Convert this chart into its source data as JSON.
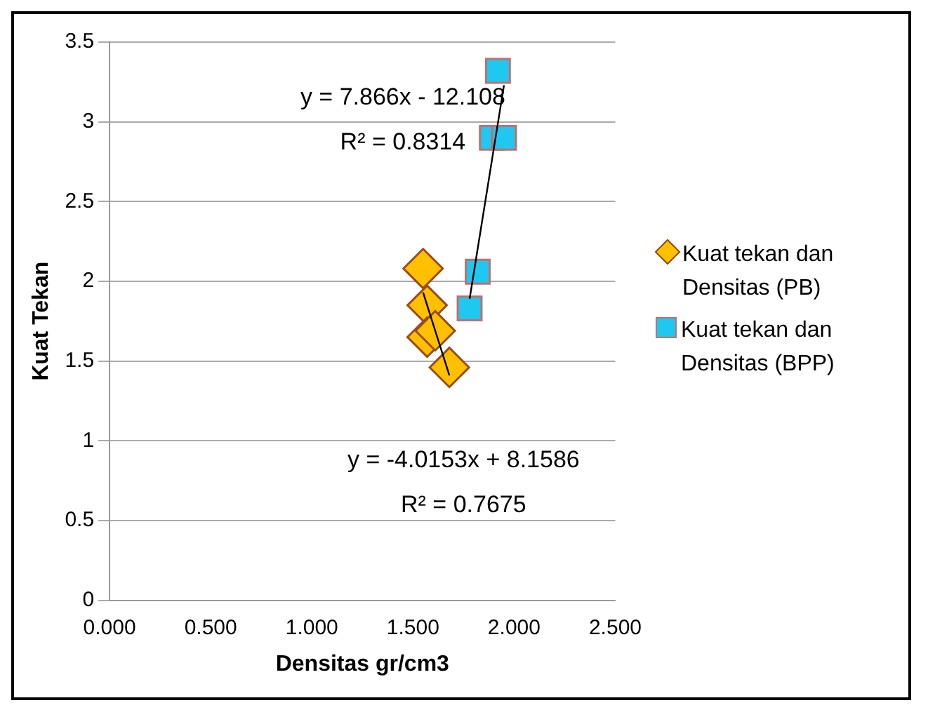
{
  "chart_data": {
    "type": "scatter",
    "xlabel": "Densitas gr/cm3",
    "ylabel": "Kuat Tekan",
    "xlim": [
      0,
      2.5
    ],
    "xticks": [
      {
        "value": 0,
        "label": "0.000"
      },
      {
        "value": 0.5,
        "label": "0.500"
      },
      {
        "value": 1,
        "label": "1.000"
      },
      {
        "value": 1.5,
        "label": "1.500"
      },
      {
        "value": 2,
        "label": "2.000"
      },
      {
        "value": 2.5,
        "label": "2.500"
      }
    ],
    "ylim": [
      0,
      3.5
    ],
    "yticks": [
      0,
      0.5,
      1,
      1.5,
      2,
      2.5,
      3,
      3.5
    ],
    "grid": "y",
    "legend": "right",
    "series": [
      {
        "name": "Kuat tekan dan Densitas (PB)",
        "color": "#ffc000",
        "marker": "diamond",
        "x": [
          1.55,
          1.57,
          1.57,
          1.61,
          1.68
        ],
        "values": [
          2.08,
          1.85,
          1.65,
          1.69,
          1.46
        ]
      },
      {
        "name": "Kuat tekan dan Densitas (BPP)",
        "color": "#1ec8f0",
        "marker": "square",
        "x": [
          1.92,
          1.89,
          1.95,
          1.82,
          1.78
        ],
        "values": [
          3.32,
          2.9,
          2.9,
          2.06,
          1.83
        ]
      },
      {
        "type": "line",
        "color": "#000000",
        "marker": "none",
        "x": [
          1.55,
          1.68
        ],
        "values": [
          1.93,
          1.41
        ]
      },
      {
        "type": "line",
        "color": "#000000",
        "marker": "none",
        "x": [
          1.78,
          1.95
        ],
        "values": [
          1.89,
          3.23
        ]
      }
    ],
    "annotations": [
      "y = 7.866x - 12.108",
      "R² = 0.8314",
      "y = -4.0153x + 8.1586",
      "R² = 0.7675"
    ]
  }
}
